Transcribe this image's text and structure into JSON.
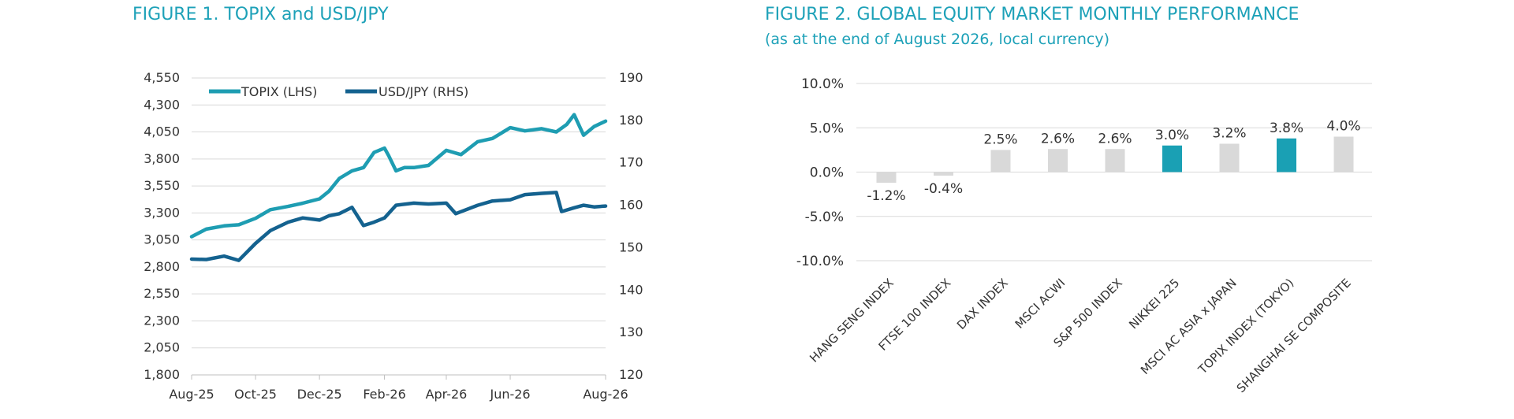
{
  "figure1": {
    "title": "FIGURE 1. TOPIX and USD/JPY"
  },
  "figure2": {
    "title": "FIGURE 2. GLOBAL EQUITY MARKET MONTHLY PERFORMANCE",
    "subtitle": "(as at the end of August 2026, local currency)"
  },
  "colors": {
    "title": "#1da1b8",
    "topix": "#1e9db2",
    "usdjpy": "#14628f",
    "bar_grey": "#d9d9d9",
    "bar_highlight": "#1aa0b4",
    "grid": "#d9d9d9"
  },
  "chart_data": [
    {
      "type": "line",
      "title": "FIGURE 1. TOPIX and USD/JPY",
      "x_ticks": [
        "Aug-25",
        "Oct-25",
        "Dec-25",
        "Feb-26",
        "Apr-26",
        "Jun-26",
        "Aug-26"
      ],
      "y_left": {
        "ticks": [
          "4,550",
          "4,300",
          "4,050",
          "3,800",
          "3,550",
          "3,300",
          "3,050",
          "2,800",
          "2,550",
          "2,300",
          "2,050",
          "1,800"
        ],
        "range": [
          1800,
          4550
        ]
      },
      "y_right": {
        "ticks": [
          "190",
          "180",
          "170",
          "160",
          "150",
          "140",
          "130",
          "120"
        ],
        "range": [
          120,
          190
        ]
      },
      "legend_position": "top-left",
      "grid": true,
      "series": [
        {
          "name": "TOPIX (LHS)",
          "axis": "left",
          "x": [
            "2025-08-01",
            "2025-08-15",
            "2025-09-01",
            "2025-09-15",
            "2025-10-01",
            "2025-10-15",
            "2025-11-01",
            "2025-11-15",
            "2025-12-01",
            "2025-12-10",
            "2025-12-20",
            "2026-01-01",
            "2026-01-12",
            "2026-01-22",
            "2026-02-01",
            "2026-02-05",
            "2026-02-12",
            "2026-02-20",
            "2026-03-01",
            "2026-03-15",
            "2026-04-01",
            "2026-04-15",
            "2026-05-01",
            "2026-05-15",
            "2026-06-01",
            "2026-06-15",
            "2026-07-01",
            "2026-07-15",
            "2026-07-25",
            "2026-08-01",
            "2026-08-10",
            "2026-08-20",
            "2026-08-31"
          ],
          "y": [
            3080,
            3150,
            3180,
            3190,
            3250,
            3330,
            3360,
            3390,
            3430,
            3500,
            3620,
            3690,
            3720,
            3860,
            3900,
            3830,
            3690,
            3720,
            3720,
            3740,
            3880,
            3840,
            3960,
            3990,
            4090,
            4060,
            4080,
            4050,
            4120,
            4210,
            4020,
            4100,
            4150
          ]
        },
        {
          "name": "USD/JPY (RHS)",
          "axis": "right",
          "x": [
            "2025-08-01",
            "2025-08-15",
            "2025-09-01",
            "2025-09-15",
            "2025-10-01",
            "2025-10-15",
            "2025-11-01",
            "2025-11-15",
            "2025-12-01",
            "2025-12-10",
            "2025-12-20",
            "2026-01-01",
            "2026-01-12",
            "2026-01-22",
            "2026-02-01",
            "2026-02-12",
            "2026-03-01",
            "2026-03-15",
            "2026-04-01",
            "2026-04-10",
            "2026-05-01",
            "2026-05-15",
            "2026-06-01",
            "2026-06-15",
            "2026-07-01",
            "2026-07-15",
            "2026-07-20",
            "2026-08-01",
            "2026-08-10",
            "2026-08-20",
            "2026-08-31"
          ],
          "y": [
            147.3,
            147.2,
            148,
            147,
            151,
            154,
            156,
            157,
            156.5,
            157.5,
            158,
            159.5,
            155.2,
            156,
            157,
            160,
            160.5,
            160.3,
            160.5,
            158,
            160,
            161,
            161.3,
            162.5,
            162.8,
            163,
            158.5,
            159.4,
            160,
            159.6,
            159.8
          ]
        }
      ]
    },
    {
      "type": "bar",
      "title": "FIGURE 2. GLOBAL EQUITY MARKET MONTHLY PERFORMANCE",
      "subtitle": "(as at the end of August 2026, local currency)",
      "categories": [
        "HANG SENG INDEX",
        "FTSE 100 INDEX",
        "DAX INDEX",
        "MSCI ACWI",
        "S&P 500 INDEX",
        "NIKKEI 225",
        "MSCI AC ASIA x JAPAN",
        "TOPIX INDEX (TOKYO)",
        "SHANGHAI SE COMPOSITE"
      ],
      "values": [
        -1.2,
        -0.4,
        2.5,
        2.6,
        2.6,
        3.0,
        3.2,
        3.8,
        4.0
      ],
      "labels": [
        "-1.2%",
        "-0.4%",
        "2.5%",
        "2.6%",
        "2.6%",
        "3.0%",
        "3.2%",
        "3.8%",
        "4.0%"
      ],
      "highlight": [
        "NIKKEI 225",
        "TOPIX INDEX (TOKYO)"
      ],
      "y_ticks": [
        "10.0%",
        "5.0%",
        "0.0%",
        "-5.0%",
        "-10.0%"
      ],
      "ylim": [
        -10,
        10
      ],
      "grid": true
    }
  ]
}
